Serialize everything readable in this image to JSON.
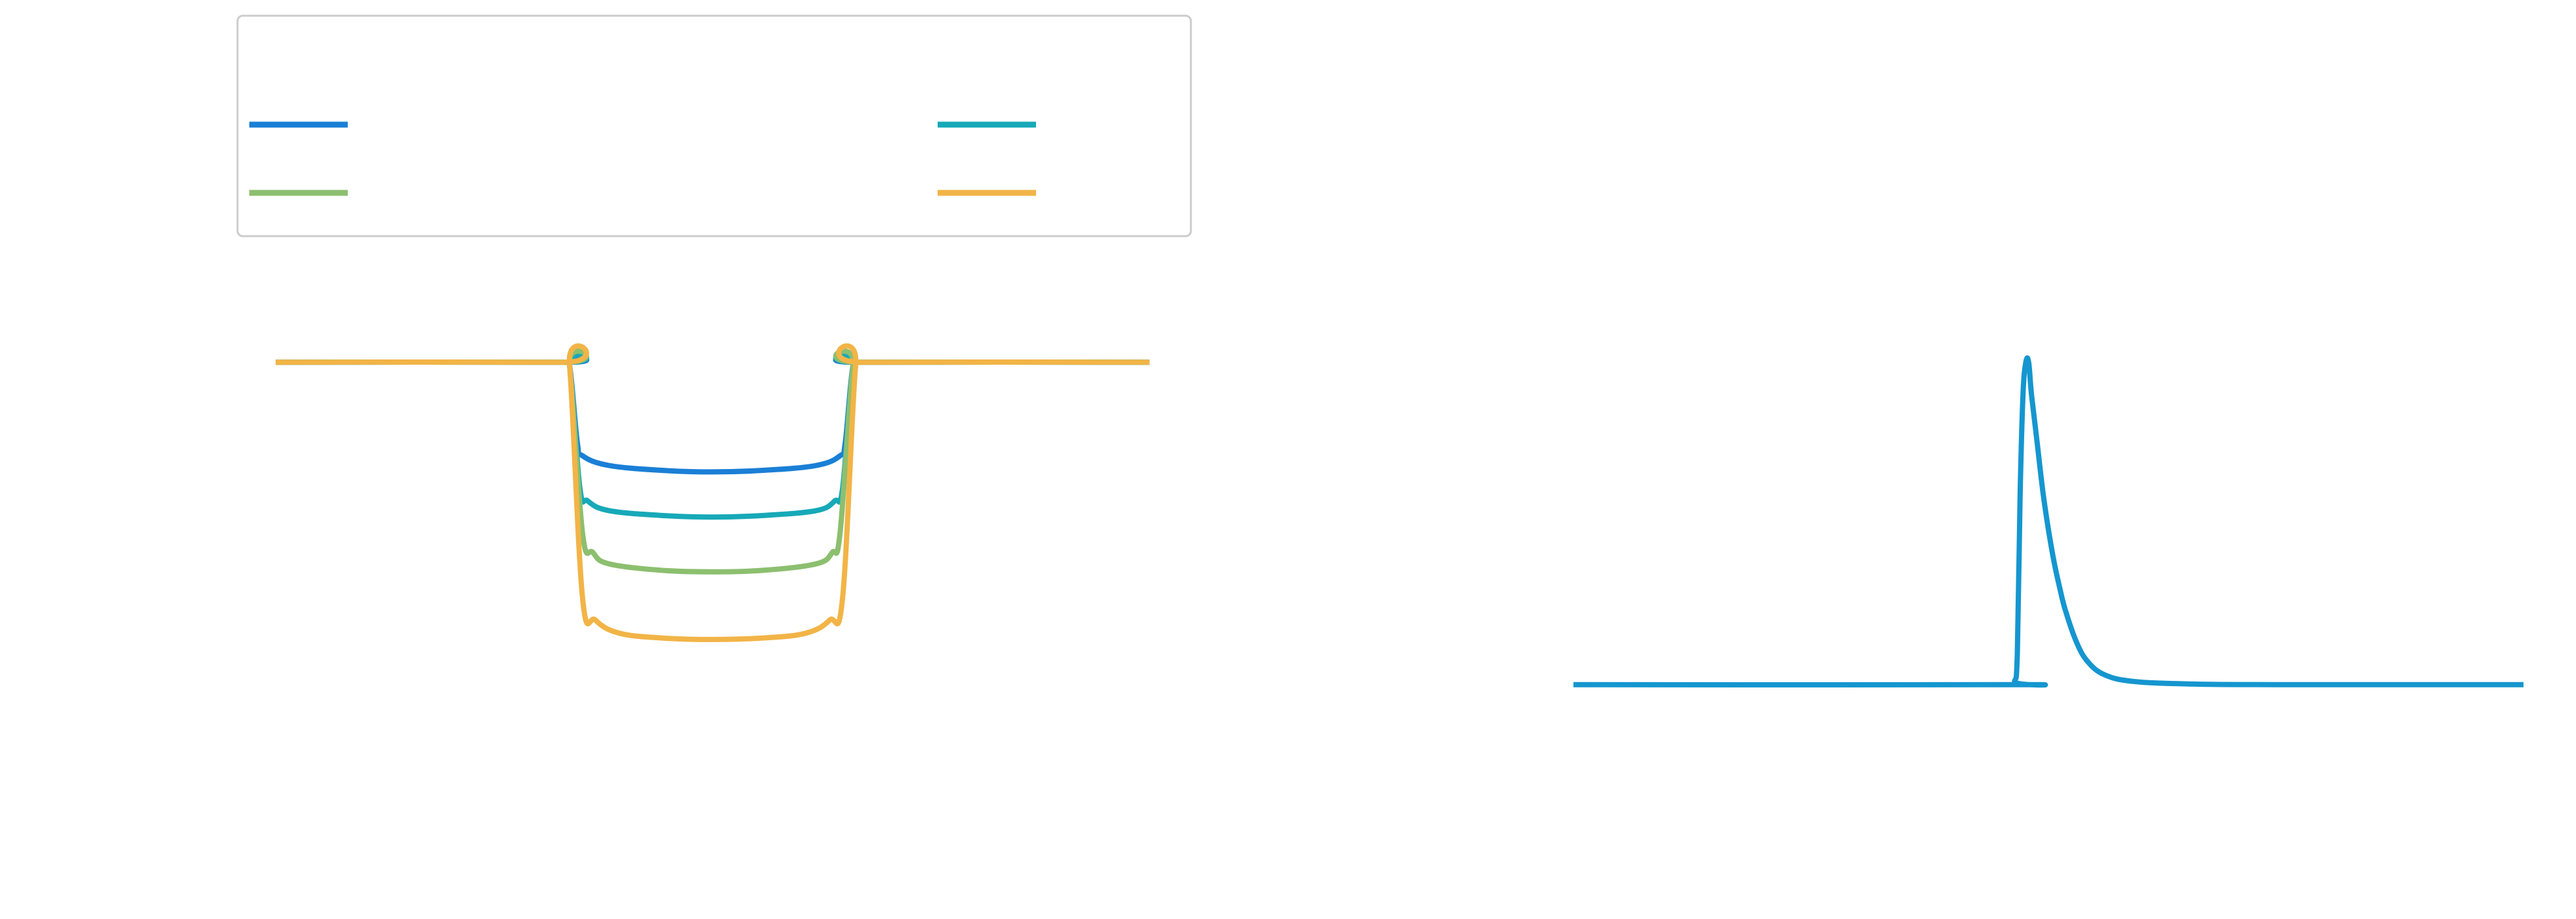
{
  "colors": {
    "background": "#ffffff",
    "legend_border": "#cccccc"
  },
  "chart_data": [
    {
      "type": "line",
      "title": "",
      "xlabel": "",
      "ylabel": "",
      "grid": false,
      "legend": {
        "placement": "top",
        "columns": 2,
        "entries": [
          {
            "series_index": 0,
            "label": ""
          },
          {
            "series_index": 2,
            "label": ""
          },
          {
            "series_index": 1,
            "label": ""
          },
          {
            "series_index": 3,
            "label": ""
          }
        ]
      },
      "x_range": [
        -0.84,
        0.84
      ],
      "y_range": [
        -1.2,
        0.2
      ],
      "series": [
        {
          "color": "#1a7fd6",
          "points": [
            [
              -0.84,
              0
            ],
            [
              -0.29,
              0
            ],
            [
              -0.275,
              -0.01
            ],
            [
              -0.26,
              -0.25
            ],
            [
              -0.25,
              -0.29
            ],
            [
              -0.2,
              -0.32
            ],
            [
              -0.1,
              -0.335
            ],
            [
              0.0,
              -0.34
            ],
            [
              0.1,
              -0.335
            ],
            [
              0.2,
              -0.32
            ],
            [
              0.245,
              -0.29
            ],
            [
              0.255,
              -0.25
            ],
            [
              0.27,
              -0.01
            ],
            [
              0.285,
              0
            ],
            [
              0.84,
              0
            ]
          ]
        },
        {
          "color": "#17a9b8",
          "points": [
            [
              -0.84,
              0
            ],
            [
              -0.29,
              0
            ],
            [
              -0.275,
              -0.01
            ],
            [
              -0.255,
              -0.39
            ],
            [
              -0.24,
              -0.43
            ],
            [
              -0.2,
              -0.46
            ],
            [
              -0.1,
              -0.475
            ],
            [
              0.0,
              -0.48
            ],
            [
              0.1,
              -0.475
            ],
            [
              0.2,
              -0.46
            ],
            [
              0.235,
              -0.43
            ],
            [
              0.25,
              -0.39
            ],
            [
              0.27,
              -0.01
            ],
            [
              0.285,
              0
            ],
            [
              0.84,
              0
            ]
          ]
        },
        {
          "color": "#8cbf6f",
          "points": [
            [
              -0.84,
              0
            ],
            [
              -0.29,
              0
            ],
            [
              -0.275,
              -0.01
            ],
            [
              -0.25,
              -0.53
            ],
            [
              -0.23,
              -0.59
            ],
            [
              -0.2,
              -0.625
            ],
            [
              -0.1,
              -0.645
            ],
            [
              0.0,
              -0.65
            ],
            [
              0.1,
              -0.645
            ],
            [
              0.2,
              -0.625
            ],
            [
              0.23,
              -0.59
            ],
            [
              0.245,
              -0.53
            ],
            [
              0.27,
              -0.01
            ],
            [
              0.285,
              0
            ],
            [
              0.84,
              0
            ]
          ]
        },
        {
          "color": "#f2b447",
          "points": [
            [
              -0.84,
              0
            ],
            [
              -0.29,
              0
            ],
            [
              -0.275,
              -0.01
            ],
            [
              -0.25,
              -0.73
            ],
            [
              -0.225,
              -0.8
            ],
            [
              -0.18,
              -0.84
            ],
            [
              -0.1,
              -0.855
            ],
            [
              0.0,
              -0.86
            ],
            [
              0.1,
              -0.855
            ],
            [
              0.18,
              -0.84
            ],
            [
              0.225,
              -0.8
            ],
            [
              0.25,
              -0.73
            ],
            [
              0.275,
              -0.01
            ],
            [
              0.29,
              0
            ],
            [
              0.84,
              0
            ]
          ]
        }
      ]
    },
    {
      "type": "line",
      "title": "",
      "xlabel": "",
      "ylabel": "",
      "grid": false,
      "x_range": [
        -0.84,
        0.84
      ],
      "y_range": [
        -0.2,
        1.2
      ],
      "series": [
        {
          "color": "#1596cf",
          "points": [
            [
              -0.84,
              0
            ],
            [
              -0.07,
              0
            ],
            [
              -0.06,
              0.01
            ],
            [
              -0.055,
              0.1
            ],
            [
              -0.05,
              0.6
            ],
            [
              -0.045,
              0.9
            ],
            [
              -0.04,
              1.0
            ],
            [
              -0.035,
              1.0
            ],
            [
              -0.03,
              0.9
            ],
            [
              -0.02,
              0.75
            ],
            [
              -0.01,
              0.6
            ],
            [
              0.0,
              0.48
            ],
            [
              0.01,
              0.38
            ],
            [
              0.02,
              0.3
            ],
            [
              0.03,
              0.23
            ],
            [
              0.05,
              0.13
            ],
            [
              0.07,
              0.07
            ],
            [
              0.1,
              0.03
            ],
            [
              0.15,
              0.01
            ],
            [
              0.25,
              0.002
            ],
            [
              0.4,
              0
            ],
            [
              0.84,
              0
            ]
          ]
        }
      ]
    }
  ]
}
